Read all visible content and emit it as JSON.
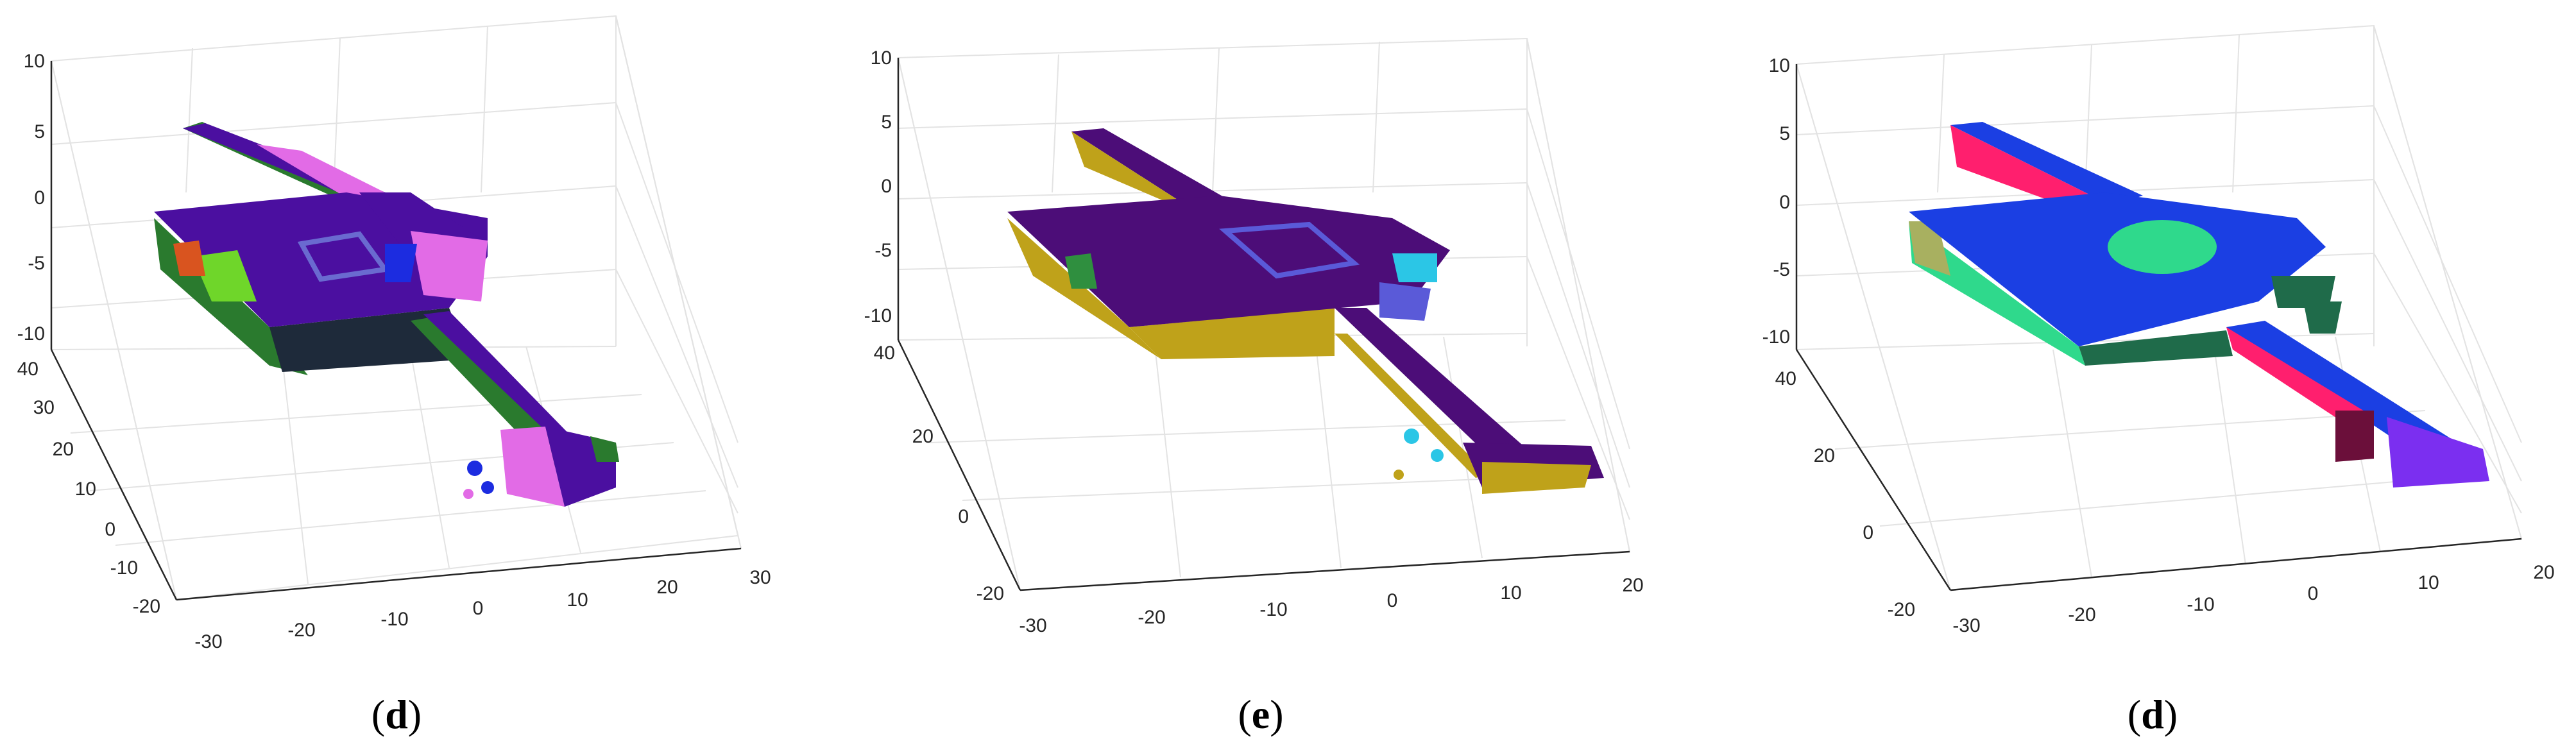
{
  "chart_data": [
    {
      "type": "scatter",
      "panel_label": "d",
      "z_ticks": [
        "10",
        "5",
        "0",
        "-5",
        "-10"
      ],
      "y_ticks": [
        "40",
        "30",
        "20",
        "10",
        "0",
        "-10",
        "-20"
      ],
      "x_ticks": [
        "-30",
        "-20",
        "-10",
        "0",
        "10",
        "20",
        "30"
      ],
      "zlim": [
        -10,
        10
      ],
      "ylim": [
        -20,
        40
      ],
      "xlim": [
        -30,
        30
      ],
      "grid": true,
      "colors": [
        "#4b0fa0",
        "#2a7a2e",
        "#e26be6",
        "#1e2a3a",
        "#1c2ce0",
        "#6fd62a",
        "#d9541f",
        "#6a6ad0"
      ]
    },
    {
      "type": "scatter",
      "panel_label": "e",
      "z_ticks": [
        "10",
        "5",
        "0",
        "-5",
        "-10"
      ],
      "y_ticks": [
        "40",
        "20",
        "0",
        "-20"
      ],
      "x_ticks": [
        "-30",
        "-20",
        "-10",
        "0",
        "10",
        "20"
      ],
      "zlim": [
        -10,
        10
      ],
      "ylim": [
        -20,
        40
      ],
      "xlim": [
        -30,
        20
      ],
      "grid": true,
      "colors": [
        "#4c0d78",
        "#bfa21a",
        "#2bc6e6",
        "#5a5ad8",
        "#1b2fd6",
        "#2f8f3f"
      ]
    },
    {
      "type": "scatter",
      "panel_label": "d",
      "z_ticks": [
        "10",
        "5",
        "0",
        "-5",
        "-10"
      ],
      "y_ticks": [
        "40",
        "20",
        "0",
        "-20"
      ],
      "x_ticks": [
        "-30",
        "-20",
        "-10",
        "0",
        "10",
        "20"
      ],
      "zlim": [
        -10,
        10
      ],
      "ylim": [
        -20,
        40
      ],
      "xlim": [
        -30,
        20
      ],
      "grid": true,
      "colors": [
        "#1b3fe3",
        "#2fd98c",
        "#ff1f6e",
        "#1f6b4a",
        "#a8b060",
        "#6b0f3a",
        "#7b2ff0"
      ]
    }
  ]
}
